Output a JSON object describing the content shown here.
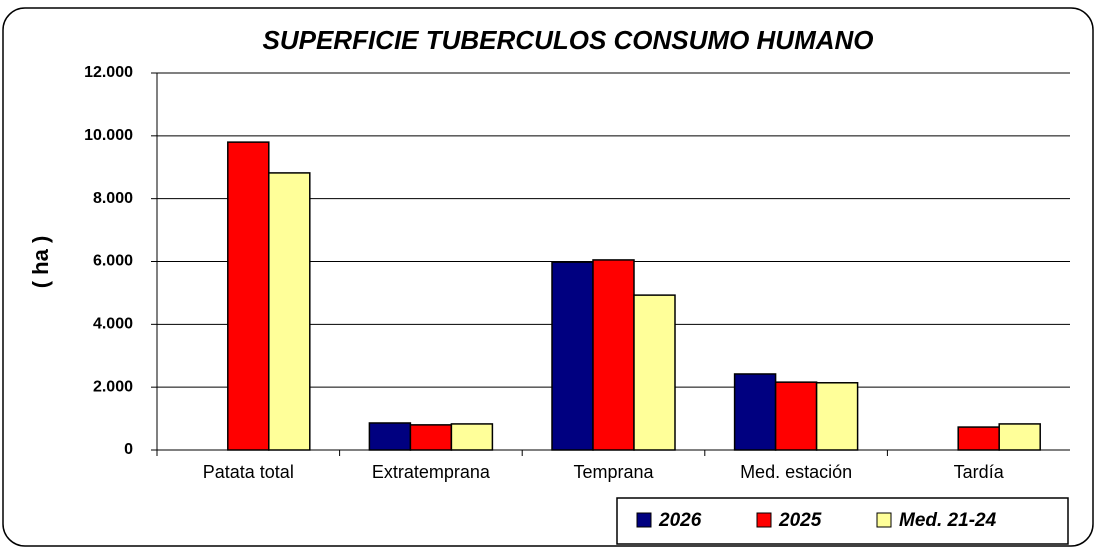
{
  "chart_data": {
    "type": "bar",
    "title": "SUPERFICIE TUBERCULOS CONSUMO HUMANO",
    "y_label": "( ha )",
    "categories": [
      "Patata total",
      "Extratemprana",
      "Temprana",
      "Med. estación",
      "Tardía"
    ],
    "series": [
      {
        "name": "2026",
        "color": "#000080",
        "values": [
          null,
          860,
          5980,
          2420,
          null
        ]
      },
      {
        "name": "2025",
        "color": "#ff0000",
        "values": [
          9800,
          800,
          6050,
          2160,
          730
        ]
      },
      {
        "name": "Med. 21-24",
        "color": "#ffff99",
        "values": [
          8820,
          830,
          4930,
          2140,
          830
        ]
      }
    ],
    "ylim": [
      0,
      12000
    ],
    "yticks": [
      0,
      {
        "value": 2000,
        "label": "2.000"
      },
      {
        "value": 4000,
        "label": "4.000"
      },
      {
        "value": 6000,
        "label": "6.000"
      },
      {
        "value": 8000,
        "label": "8.000"
      },
      {
        "value": 10000,
        "label": "10.000"
      },
      {
        "value": 12000,
        "label": "12.000"
      }
    ],
    "grid": true,
    "legend": "bottom-right"
  }
}
